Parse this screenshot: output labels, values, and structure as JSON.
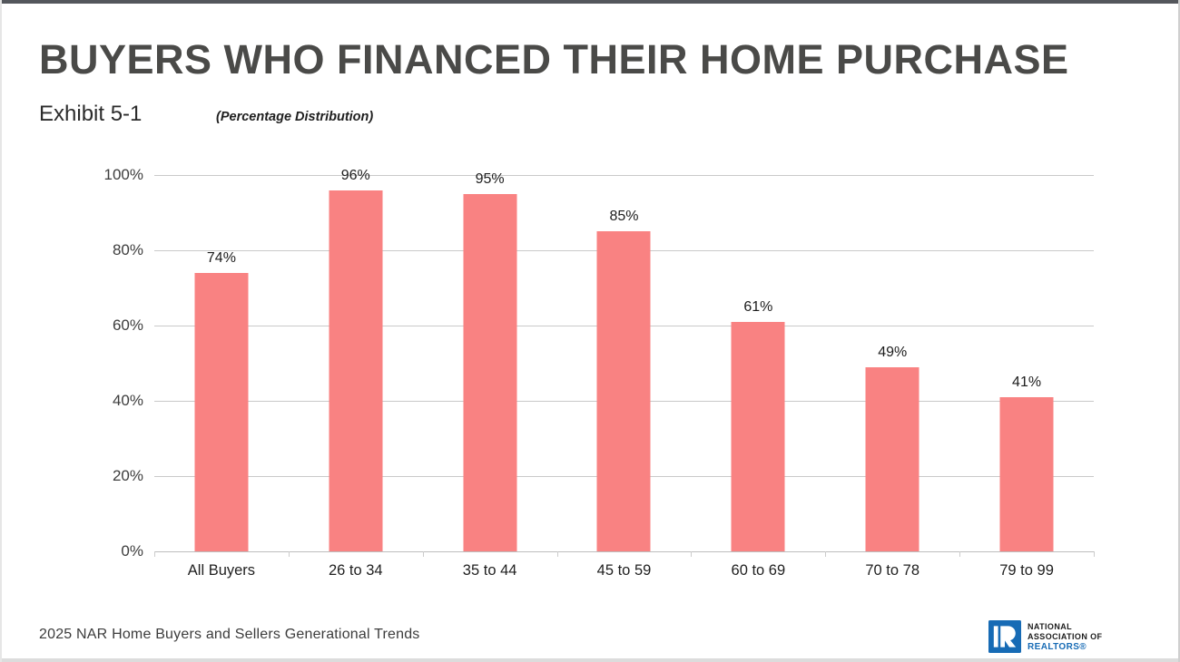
{
  "page": {
    "title": "BUYERS WHO FINANCED THEIR HOME PURCHASE",
    "exhibit_label": "Exhibit 5-1",
    "note": "(Percentage Distribution)",
    "source": "2025 NAR Home Buyers and Sellers Generational Trends"
  },
  "logo": {
    "line1": "NATIONAL",
    "line2": "ASSOCIATION OF",
    "line3": "REALTORS®",
    "blue": "#176bb5"
  },
  "chart_data": {
    "type": "bar",
    "title": "BUYERS WHO FINANCED THEIR HOME PURCHASE",
    "subtitle": "Exhibit 5-1 (Percentage Distribution)",
    "categories": [
      "All Buyers",
      "26 to 34",
      "35 to 44",
      "45 to 59",
      "60 to 69",
      "70 to 78",
      "79 to 99"
    ],
    "values": [
      74,
      96,
      95,
      85,
      61,
      49,
      41
    ],
    "data_labels": [
      "74%",
      "96%",
      "95%",
      "85%",
      "61%",
      "49%",
      "41%"
    ],
    "xlabel": "",
    "ylabel": "",
    "ylim": [
      0,
      100
    ],
    "ytick_values": [
      100,
      80,
      60,
      40,
      20,
      0
    ],
    "ytick_labels": [
      "100%",
      "80%",
      "60%",
      "40%",
      "20%",
      "0%"
    ],
    "grid": "horizontal",
    "legend": "none",
    "bar_color": "#f98282",
    "source": "2025 NAR Home Buyers and Sellers Generational Trends"
  }
}
